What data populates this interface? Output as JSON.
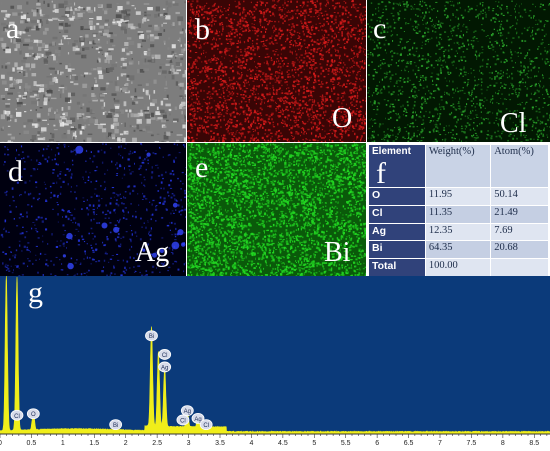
{
  "panels": {
    "a": {
      "letter": "a"
    },
    "b": {
      "letter": "b",
      "element": "O",
      "color": "#d11a1a",
      "bg": "#3a0505"
    },
    "c": {
      "letter": "c",
      "element": "Cl",
      "color": "#2aa32a",
      "bg": "#021802"
    },
    "d": {
      "letter": "d",
      "element": "Ag",
      "color": "#2233d8",
      "bg": "#000010"
    },
    "e": {
      "letter": "e",
      "element": "Bi",
      "color": "#22d622",
      "bg": "#0a5a0a"
    },
    "f": {
      "letter": "f"
    },
    "g": {
      "letter": "g"
    }
  },
  "table": {
    "headers": [
      "Element",
      "Weight(%)",
      "Atom(%)"
    ],
    "rows": [
      [
        "O",
        "11.95",
        "50.14"
      ],
      [
        "Cl",
        "11.35",
        "21.49"
      ],
      [
        "Ag",
        "12.35",
        "7.69"
      ],
      [
        "Bi",
        "64.35",
        "20.68"
      ],
      [
        "Total",
        "100.00",
        ""
      ]
    ]
  },
  "chart_data": {
    "type": "line",
    "title": "",
    "xlabel": "",
    "ylabel": "",
    "xlim": [
      0,
      8.75
    ],
    "x_ticks": [
      "0",
      "0.5",
      "1",
      "1.5",
      "2",
      "2.5",
      "3",
      "3.5",
      "4",
      "4.5",
      "5",
      "5.5",
      "6",
      "6.5",
      "7",
      "7.5",
      "8",
      "8.5"
    ],
    "background": "#0b3a7a",
    "series_color": "#f0ee1a",
    "peaks": [
      {
        "x": 0.1,
        "y": 1.0
      },
      {
        "x": 0.27,
        "y": 0.98
      },
      {
        "x": 0.53,
        "y": 0.12
      },
      {
        "x": 1.84,
        "y": 0.03
      },
      {
        "x": 2.41,
        "y": 0.64
      },
      {
        "x": 2.52,
        "y": 0.48
      },
      {
        "x": 2.62,
        "y": 0.38
      },
      {
        "x": 2.98,
        "y": 0.1
      },
      {
        "x": 3.15,
        "y": 0.05
      }
    ],
    "peak_labels": [
      {
        "x": 0.27,
        "y": 0.12,
        "label": "Cl"
      },
      {
        "x": 0.53,
        "y": 0.13,
        "label": "O"
      },
      {
        "x": 1.84,
        "y": 0.06,
        "label": "Bi"
      },
      {
        "x": 2.41,
        "y": 0.63,
        "label": "Bi"
      },
      {
        "x": 2.62,
        "y": 0.51,
        "label": "Cl"
      },
      {
        "x": 2.62,
        "y": 0.43,
        "label": "Ag"
      },
      {
        "x": 2.98,
        "y": 0.15,
        "label": "Ag"
      },
      {
        "x": 3.15,
        "y": 0.1,
        "label": "Ag"
      },
      {
        "x": 2.91,
        "y": 0.09,
        "label": "Cl"
      },
      {
        "x": 3.28,
        "y": 0.06,
        "label": "Cl"
      }
    ]
  }
}
